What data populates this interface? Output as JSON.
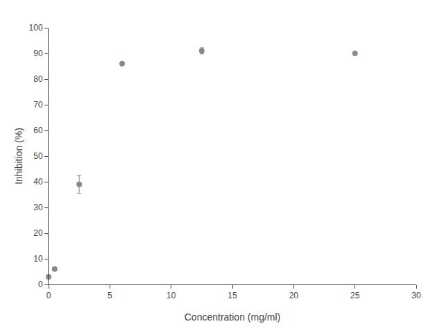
{
  "chart_data": {
    "type": "scatter",
    "x": [
      0,
      0.5,
      2.5,
      6,
      12.5,
      25
    ],
    "values": [
      3,
      6,
      39,
      86,
      91,
      90
    ],
    "yerr": [
      0.3,
      0.3,
      3.5,
      0.5,
      1.2,
      0.5
    ],
    "xlabel": "Concentration (mg/ml)",
    "ylabel": "Inhibition (%)",
    "xlim": [
      0,
      30
    ],
    "ylim": [
      0,
      100
    ],
    "xticks": [
      0,
      5,
      10,
      15,
      20,
      25,
      30
    ],
    "yticks": [
      0,
      10,
      20,
      30,
      40,
      50,
      60,
      70,
      80,
      90,
      100
    ],
    "color": "#888888",
    "marker": "circle",
    "line_style": "none",
    "grid": false
  }
}
